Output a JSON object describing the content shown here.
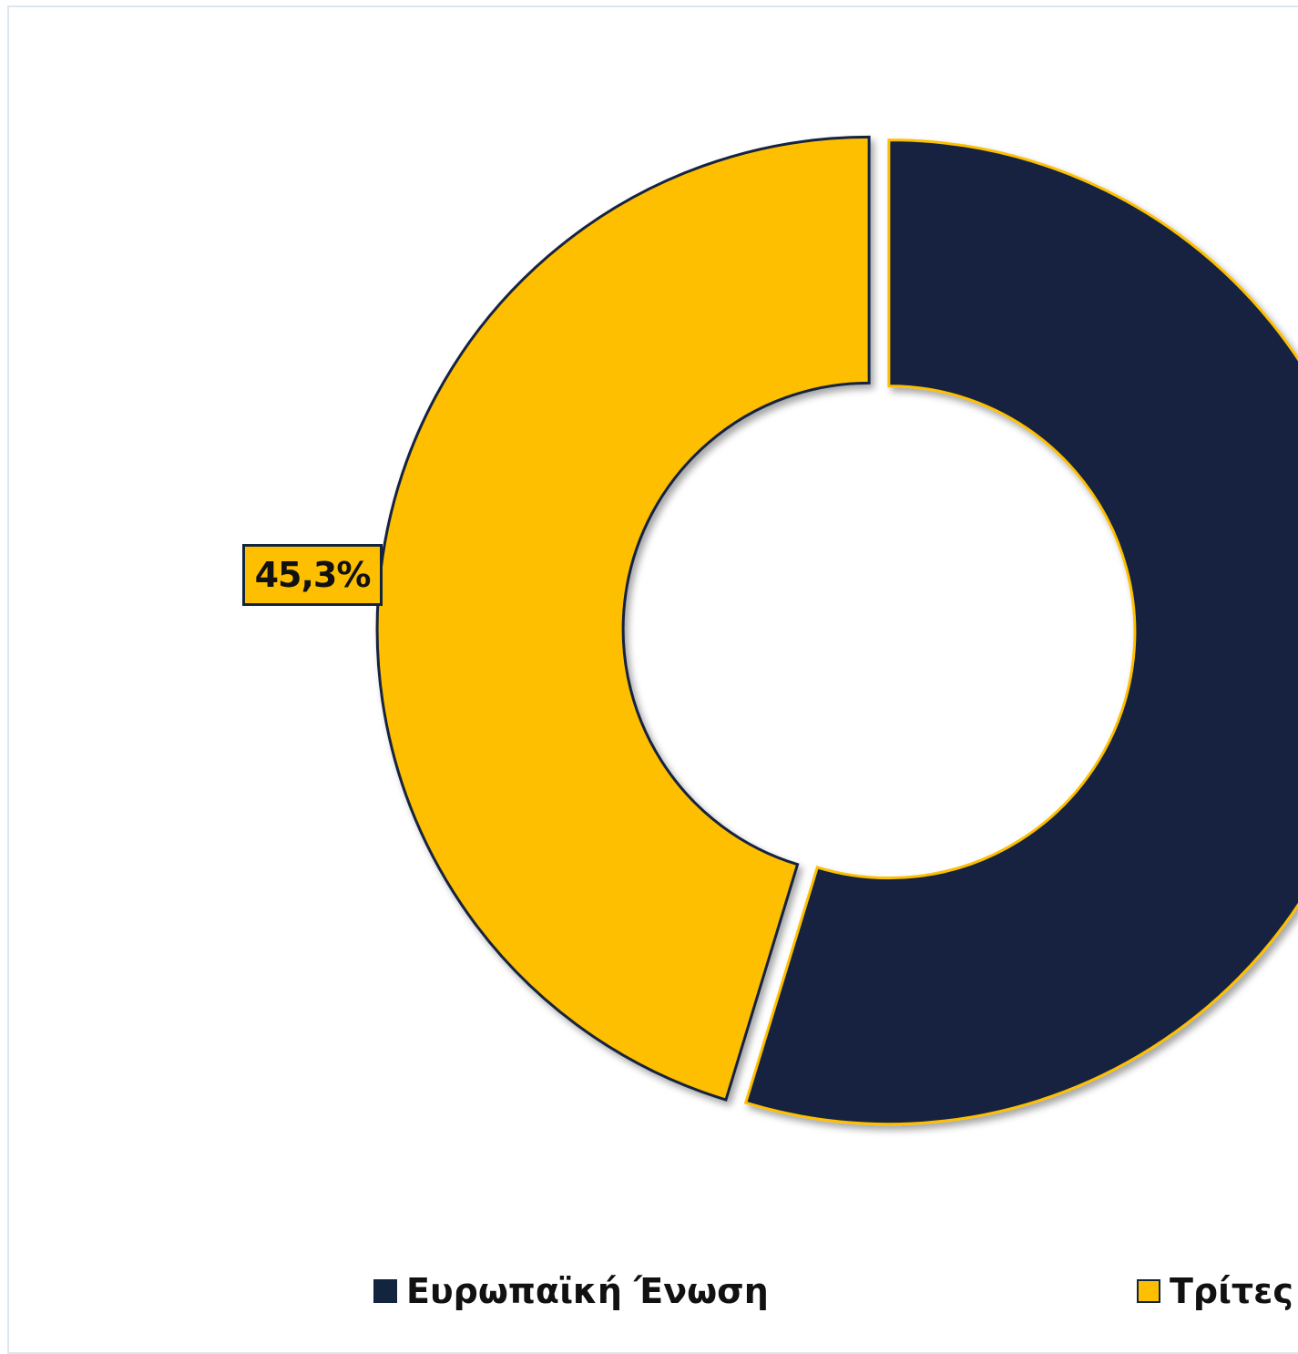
{
  "colors": {
    "eu": "#13243f",
    "third": "#fdbf00",
    "frame": "#dde6ef"
  },
  "chart_data": {
    "type": "pie",
    "donut": true,
    "title": "",
    "categories": [
      "Ευρωπαϊκή Ένωση",
      "Τρίτες"
    ],
    "values": [
      54.7,
      45.3
    ],
    "data_labels": [
      "",
      "45,3%"
    ],
    "legend_position": "bottom",
    "legend": [
      "Ευρωπαϊκή Ένωση",
      "Τρίτες"
    ]
  }
}
